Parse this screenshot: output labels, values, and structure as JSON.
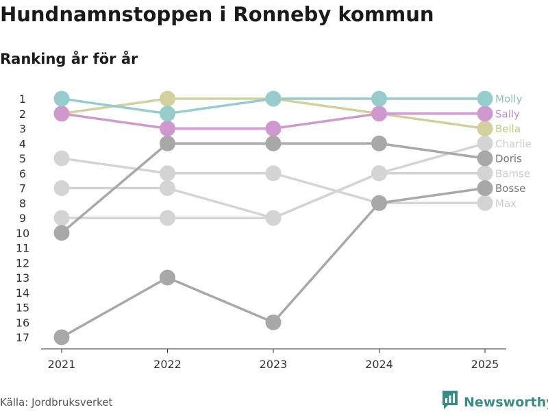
{
  "chart_data": {
    "type": "line",
    "title": "Hundnamnstoppen i Ronneby kommun",
    "subtitle": "Ranking år för år",
    "x": [
      "2021",
      "2022",
      "2023",
      "2024",
      "2025"
    ],
    "y_ticks": [
      "1",
      "2",
      "3",
      "4",
      "5",
      "6",
      "7",
      "8",
      "9",
      "10",
      "11",
      "12",
      "13",
      "14",
      "15",
      "16",
      "17"
    ],
    "ylim": [
      1,
      17
    ],
    "y_reversed": true,
    "grid": false,
    "series": [
      {
        "name": "Max",
        "values": [
          5,
          6,
          6,
          8,
          8
        ],
        "color": "#d4d4d4",
        "label_color": "#cccccc"
      },
      {
        "name": "Bamse",
        "values": [
          7,
          7,
          9,
          6,
          6
        ],
        "color": "#d4d4d4",
        "label_color": "#cccccc"
      },
      {
        "name": "Charlie",
        "values": [
          9,
          9,
          9,
          6,
          4
        ],
        "color": "#d4d4d4",
        "label_color": "#cccccc"
      },
      {
        "name": "Bosse",
        "values": [
          17,
          13,
          16,
          8,
          7
        ],
        "color": "#a8a8a8",
        "label_color": "#777777"
      },
      {
        "name": "Doris",
        "values": [
          10,
          4,
          4,
          4,
          5
        ],
        "color": "#a8a8a8",
        "label_color": "#777777"
      },
      {
        "name": "Bella",
        "values": [
          2,
          1,
          1,
          2,
          3
        ],
        "color": "#d2d09c",
        "label_color": "#c5c388"
      },
      {
        "name": "Sally",
        "values": [
          2,
          3,
          3,
          2,
          2
        ],
        "color": "#cf99cf",
        "label_color": "#c48dc4"
      },
      {
        "name": "Molly",
        "values": [
          1,
          2,
          1,
          1,
          1
        ],
        "color": "#96cccc",
        "label_color": "#86c2c2"
      }
    ]
  },
  "footer": {
    "source": "Källa: Jordbruksverket",
    "brand": "Newsworthy"
  },
  "colors": {
    "brand": "#3b8a86",
    "axis": "#333333"
  },
  "icons": {
    "brand_logo": "newsworthy-logo-icon"
  }
}
